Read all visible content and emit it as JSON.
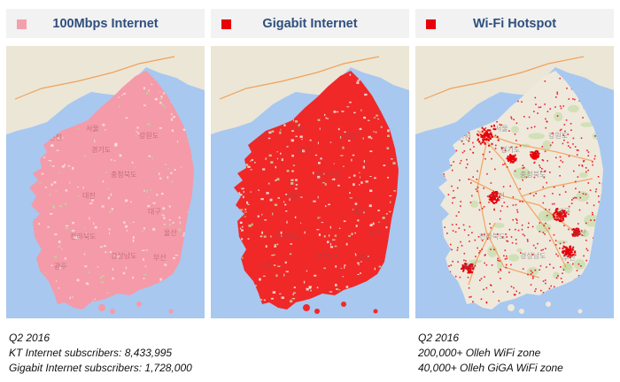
{
  "panels": [
    {
      "title": "100Mbps Internet",
      "legend_color": "#f3a0ae",
      "fill_color": "#f59aa8"
    },
    {
      "title": "Gigabit Internet",
      "legend_color": "#e8000a",
      "fill_color": "#f02828"
    },
    {
      "title": "Wi-Fi Hotspot",
      "legend_color": "#e8000a",
      "fill_color": "#e8000a"
    }
  ],
  "colors": {
    "sea": "#a8c8f0",
    "land_base": "#efe9dc",
    "north_land": "#ece6d6",
    "road": "#f1a15a",
    "park": "#b9d89a"
  },
  "map_labels": [
    "서울",
    "인천",
    "경기도",
    "강원도",
    "충청북도",
    "대전",
    "대구",
    "전라북도",
    "광주",
    "울산",
    "부산",
    "경상남도"
  ],
  "captions": {
    "left": [
      "Q2 2016",
      "KT Internet subscribers: 8,433,995",
      "Gigabit Internet subscribers: 1,728,000"
    ],
    "right": [
      "Q2 2016",
      "200,000+ Olleh WiFi zone",
      "40,000+ Olleh GiGA WiFi zone"
    ]
  }
}
